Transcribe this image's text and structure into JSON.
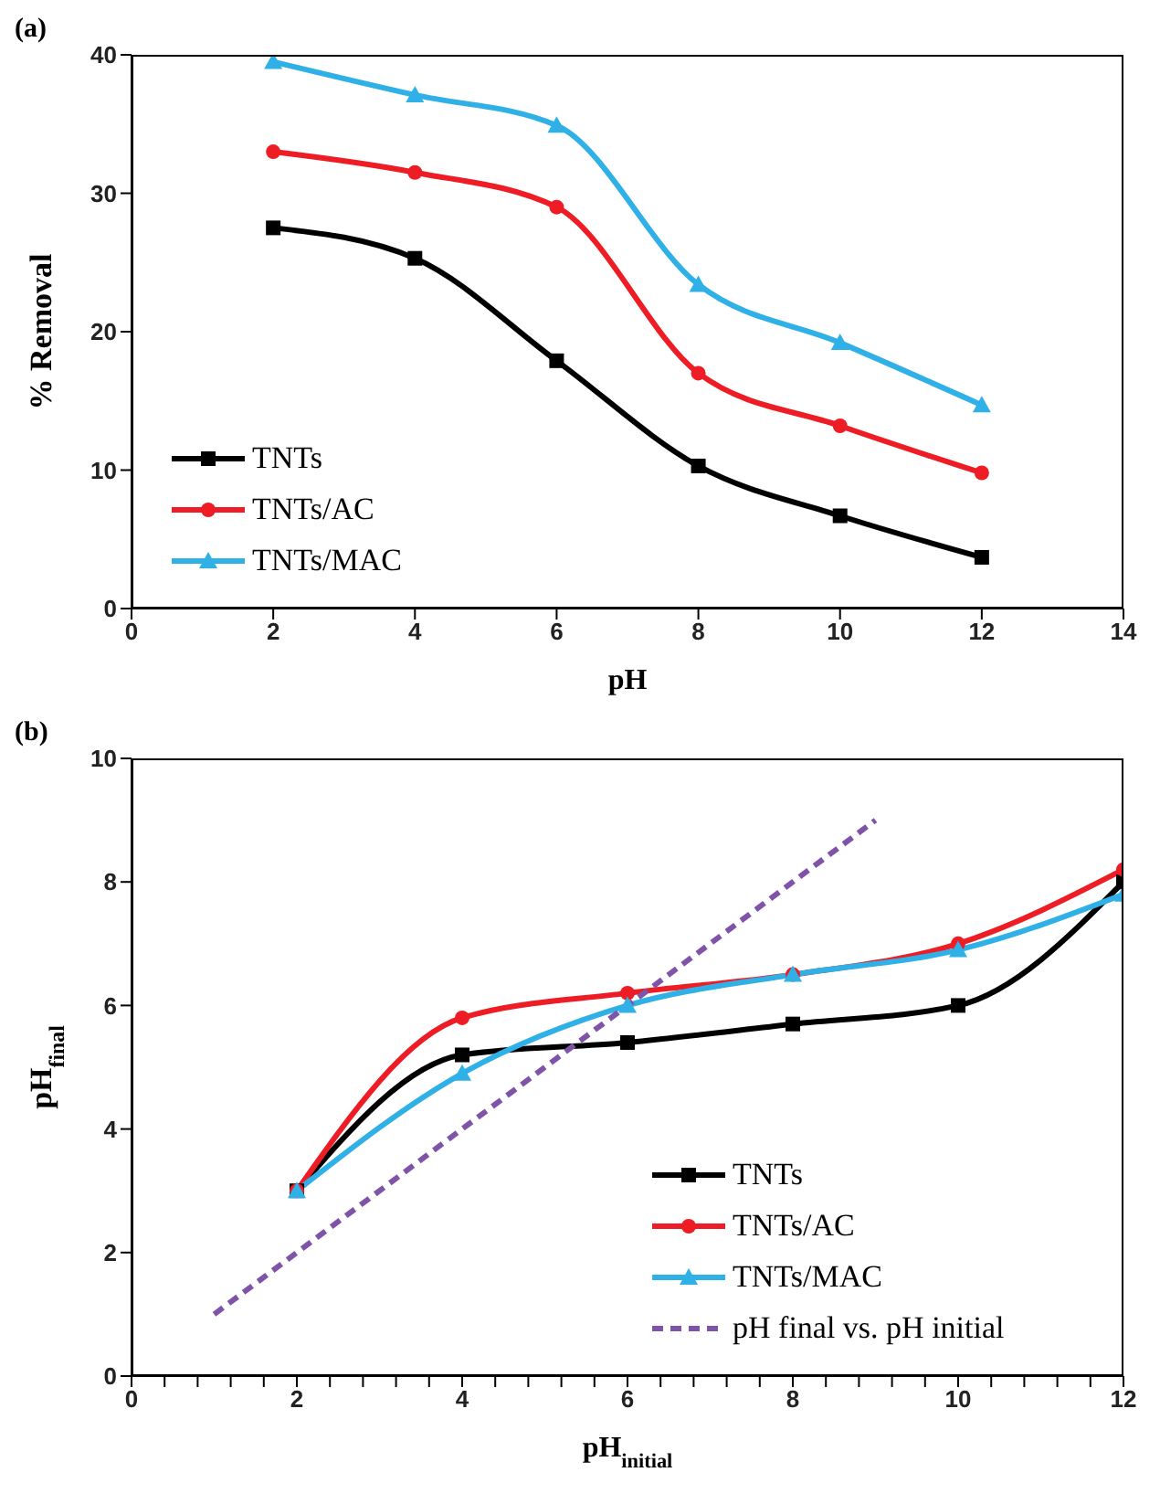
{
  "chart_data": [
    {
      "type": "line",
      "title": "(a)",
      "xlabel": "pH",
      "ylabel": "% Removal",
      "x": [
        2,
        4,
        6,
        8,
        10,
        12
      ],
      "series": [
        {
          "name": "TNTs",
          "color": "#000000",
          "marker": "square",
          "values": [
            27.5,
            25.3,
            17.9,
            10.3,
            6.7,
            3.7
          ]
        },
        {
          "name": "TNTs/AC",
          "color": "#ee1c25",
          "marker": "circle",
          "values": [
            33,
            31.5,
            29,
            17,
            13.2,
            9.8
          ]
        },
        {
          "name": "TNTs/MAC",
          "color": "#2fb0e6",
          "marker": "triangle",
          "values": [
            39.5,
            37.1,
            34.9,
            23.4,
            19.2,
            14.7
          ]
        }
      ],
      "xlim": [
        0,
        14
      ],
      "xticks": [
        0,
        2,
        4,
        6,
        8,
        10,
        12,
        14
      ],
      "ylim": [
        0,
        40
      ],
      "yticks": [
        0,
        10,
        20,
        30,
        40
      ],
      "grid": false,
      "legend": "bottom left"
    },
    {
      "type": "line",
      "title": "(b)",
      "xlabel": "pH$_{initial}$",
      "ylabel": "pH$_{final}$",
      "x": [
        2,
        4,
        6,
        8,
        10,
        12
      ],
      "series": [
        {
          "name": "TNTs",
          "color": "#000000",
          "marker": "square",
          "values": [
            3,
            5.2,
            5.4,
            5.7,
            6.0,
            8.0
          ]
        },
        {
          "name": "TNTs/AC",
          "color": "#ee1c25",
          "marker": "circle",
          "values": [
            3,
            5.8,
            6.2,
            6.5,
            7.0,
            8.2
          ]
        },
        {
          "name": "TNTs/MAC",
          "color": "#2fb0e6",
          "marker": "triangle",
          "values": [
            3,
            4.9,
            6.0,
            6.5,
            6.9,
            7.8
          ]
        },
        {
          "name": "pH final vs. pH initial",
          "color": "#7f54a8",
          "marker": "none",
          "line_style": "dashed",
          "x": [
            1,
            9
          ],
          "values": [
            1,
            9
          ]
        }
      ],
      "xlim": [
        0,
        12
      ],
      "xticks": [
        0,
        {
          "value": 0.4,
          "label": null
        },
        {
          "value": 0.8,
          "label": null
        },
        {
          "value": 1.2,
          "label": null
        },
        {
          "value": 1.6,
          "label": null
        },
        2,
        {
          "value": 2.4,
          "label": null
        },
        {
          "value": 2.8,
          "label": null
        },
        {
          "value": 3.2,
          "label": null
        },
        {
          "value": 3.6,
          "label": null
        },
        4,
        {
          "value": 4.4,
          "label": null
        },
        {
          "value": 4.8,
          "label": null
        },
        {
          "value": 5.2,
          "label": null
        },
        {
          "value": 5.6,
          "label": null
        },
        6,
        {
          "value": 6.4,
          "label": null
        },
        {
          "value": 6.8,
          "label": null
        },
        {
          "value": 7.2,
          "label": null
        },
        {
          "value": 7.6,
          "label": null
        },
        8,
        {
          "value": 8.4,
          "label": null
        },
        {
          "value": 8.8,
          "label": null
        },
        {
          "value": 9.2,
          "label": null
        },
        {
          "value": 9.6,
          "label": null
        },
        10,
        {
          "value": 10.4,
          "label": null
        },
        {
          "value": 10.8,
          "label": null
        },
        {
          "value": 11.2,
          "label": null
        },
        {
          "value": 11.6,
          "label": null
        },
        12
      ],
      "ylim": [
        0,
        10
      ],
      "yticks": [
        0,
        2,
        4,
        6,
        8,
        10
      ],
      "grid": false,
      "legend": "bottom right"
    }
  ]
}
